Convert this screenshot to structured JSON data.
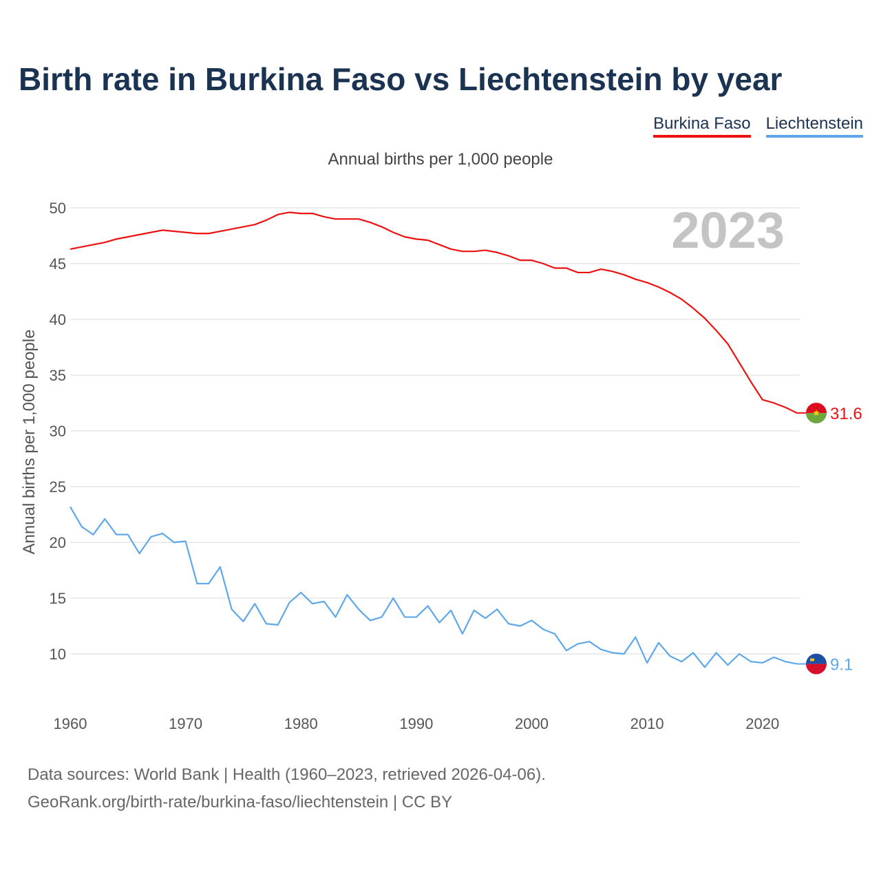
{
  "title": "Birth rate in Burkina Faso vs Liechtenstein by year",
  "subtitle": "Annual births per 1,000 people",
  "footer": {
    "line1": "Data sources: World Bank | Health (1960–2023, retrieved 2026-04-06).",
    "line2": "GeoRank.org/birth-rate/burkina-faso/liechtenstein | CC BY"
  },
  "chart_data": {
    "type": "line",
    "title": "Birth rate in Burkina Faso vs Liechtenstein by year",
    "subtitle": "Annual births per 1,000 people",
    "xlabel": "",
    "ylabel": "Annual births per 1,000 people",
    "year_watermark": "2023",
    "xlim": [
      1960,
      2023
    ],
    "ylim": [
      5,
      50
    ],
    "yticks": [
      10,
      15,
      20,
      25,
      30,
      35,
      40,
      45,
      50
    ],
    "xticks": [
      1960,
      1970,
      1980,
      1990,
      2000,
      2010,
      2020
    ],
    "grid": true,
    "legend": "top-right",
    "x": [
      1960,
      1961,
      1962,
      1963,
      1964,
      1965,
      1966,
      1967,
      1968,
      1969,
      1970,
      1971,
      1972,
      1973,
      1974,
      1975,
      1976,
      1977,
      1978,
      1979,
      1980,
      1981,
      1982,
      1983,
      1984,
      1985,
      1986,
      1987,
      1988,
      1989,
      1990,
      1991,
      1992,
      1993,
      1994,
      1995,
      1996,
      1997,
      1998,
      1999,
      2000,
      2001,
      2002,
      2003,
      2004,
      2005,
      2006,
      2007,
      2008,
      2009,
      2010,
      2011,
      2012,
      2013,
      2014,
      2015,
      2016,
      2017,
      2018,
      2019,
      2020,
      2021,
      2022,
      2023
    ],
    "series": [
      {
        "name": "Burkina Faso",
        "color": "#ee1111",
        "end_label": "31.6",
        "values": [
          46.3,
          46.5,
          46.7,
          46.9,
          47.2,
          47.4,
          47.6,
          47.8,
          48.0,
          47.9,
          47.8,
          47.7,
          47.7,
          47.9,
          48.1,
          48.3,
          48.5,
          48.9,
          49.4,
          49.6,
          49.5,
          49.5,
          49.2,
          49.0,
          49.0,
          49.0,
          48.7,
          48.3,
          47.8,
          47.4,
          47.2,
          47.1,
          46.7,
          46.3,
          46.1,
          46.1,
          46.2,
          46.0,
          45.7,
          45.3,
          45.3,
          45.0,
          44.6,
          44.6,
          44.2,
          44.2,
          44.5,
          44.3,
          44.0,
          43.6,
          43.3,
          42.9,
          42.4,
          41.8,
          41.0,
          40.1,
          39.0,
          37.8,
          36.1,
          34.4,
          32.8,
          32.5,
          32.1,
          31.6
        ]
      },
      {
        "name": "Liechtenstein",
        "color": "#5ea7ea",
        "end_label": "9.1",
        "values": [
          23.2,
          21.4,
          20.7,
          22.1,
          20.7,
          20.7,
          19.0,
          20.5,
          20.8,
          20.0,
          20.1,
          16.3,
          16.3,
          17.8,
          14.0,
          12.9,
          14.5,
          12.7,
          12.6,
          14.6,
          15.5,
          14.5,
          14.7,
          13.3,
          15.3,
          14.0,
          13.0,
          13.3,
          15.0,
          13.3,
          13.3,
          14.3,
          12.8,
          13.9,
          11.8,
          13.9,
          13.2,
          14.0,
          12.7,
          12.5,
          13.0,
          12.2,
          11.8,
          10.3,
          10.9,
          11.1,
          10.4,
          10.1,
          10.0,
          11.5,
          9.2,
          11.0,
          9.8,
          9.3,
          10.1,
          8.8,
          10.1,
          9.0,
          10.0,
          9.3,
          9.2,
          9.7,
          9.3,
          9.1
        ]
      }
    ]
  }
}
